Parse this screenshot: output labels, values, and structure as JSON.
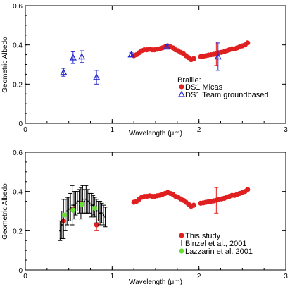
{
  "colors": {
    "micas": "#e02020",
    "groundbased": "#2a2ad0",
    "this_study": "#e02020",
    "binzel": "#000000",
    "lazzarin": "#66e030",
    "axis": "#000000"
  },
  "chart_data": [
    {
      "type": "scatter",
      "title": "",
      "xlabel": "Wavelength (μm)",
      "ylabel": "Geometric Albedo",
      "xlim": [
        0,
        3
      ],
      "ylim": [
        0,
        0.6
      ],
      "xticks": [
        "0",
        "1",
        "2",
        "3"
      ],
      "yticks": [
        "0",
        "0.2",
        "0.4",
        "0.6"
      ],
      "grid": false,
      "legend": {
        "placement": "bottom-right",
        "heading": "Braille:",
        "entries": [
          "DS1 Micas",
          "DS1 Team groundbased"
        ]
      },
      "series": [
        {
          "name": "DS1 Micas",
          "marker": "filled-circle",
          "x": [
            1.25,
            1.28,
            1.31,
            1.34,
            1.37,
            1.4,
            1.43,
            1.46,
            1.49,
            1.52,
            1.55,
            1.58,
            1.61,
            1.64,
            1.67,
            1.7,
            1.73,
            1.76,
            1.79,
            1.82,
            1.85,
            1.88,
            1.91,
            1.94,
            2.02,
            2.05,
            2.08,
            2.11,
            2.14,
            2.17,
            2.2,
            2.23,
            2.26,
            2.29,
            2.32,
            2.35,
            2.38,
            2.41,
            2.44,
            2.47,
            2.5,
            2.53,
            2.56
          ],
          "y": [
            0.345,
            0.35,
            0.36,
            0.37,
            0.375,
            0.375,
            0.378,
            0.375,
            0.375,
            0.378,
            0.38,
            0.385,
            0.39,
            0.395,
            0.39,
            0.385,
            0.375,
            0.37,
            0.362,
            0.355,
            0.345,
            0.335,
            0.325,
            0.33,
            0.34,
            0.342,
            0.345,
            0.348,
            0.35,
            0.352,
            0.355,
            0.36,
            0.362,
            0.365,
            0.37,
            0.375,
            0.38,
            0.38,
            0.385,
            0.39,
            0.395,
            0.4,
            0.41
          ],
          "error": [
            0,
            0,
            0,
            0,
            0,
            0,
            0,
            0,
            0,
            0,
            0,
            0,
            0,
            0,
            0,
            0,
            0,
            0,
            0,
            0,
            0,
            0,
            0,
            0,
            0,
            0,
            0,
            0,
            0,
            0,
            0.06,
            0,
            0,
            0,
            0,
            0,
            0,
            0,
            0,
            0,
            0,
            0,
            0
          ]
        },
        {
          "name": "DS1 Team groundbased",
          "marker": "open-triangle",
          "x": [
            0.44,
            0.55,
            0.65,
            0.82,
            1.22,
            1.63,
            2.22
          ],
          "y": [
            0.26,
            0.335,
            0.34,
            0.235,
            0.35,
            0.39,
            0.34
          ],
          "error": [
            0.02,
            0.03,
            0.03,
            0.035,
            0.01,
            0.01,
            0.07
          ]
        }
      ]
    },
    {
      "type": "scatter",
      "title": "",
      "xlabel": "Wavelength (μm)",
      "ylabel": "Geometric Albedo",
      "xlim": [
        0,
        3
      ],
      "ylim": [
        0,
        0.6
      ],
      "xticks": [
        "0",
        "1",
        "2",
        "3"
      ],
      "yticks": [
        "0",
        "0.2",
        "0.4",
        "0.6"
      ],
      "grid": false,
      "legend": {
        "placement": "bottom-right",
        "entries": [
          "This study",
          "Binzel et al., 2001",
          "Lazzarin et al. 2001"
        ]
      },
      "series": [
        {
          "name": "This study",
          "marker": "filled-circle",
          "x": [
            1.25,
            1.28,
            1.31,
            1.34,
            1.37,
            1.4,
            1.43,
            1.46,
            1.49,
            1.52,
            1.55,
            1.58,
            1.61,
            1.64,
            1.67,
            1.7,
            1.73,
            1.76,
            1.79,
            1.82,
            1.85,
            1.88,
            1.91,
            1.94,
            2.02,
            2.05,
            2.08,
            2.11,
            2.14,
            2.17,
            2.2,
            2.23,
            2.26,
            2.29,
            2.32,
            2.35,
            2.38,
            2.41,
            2.44,
            2.47,
            2.5,
            2.53,
            2.56,
            0.44,
            0.55,
            0.65,
            0.82
          ],
          "y": [
            0.345,
            0.35,
            0.36,
            0.37,
            0.375,
            0.375,
            0.378,
            0.375,
            0.375,
            0.378,
            0.38,
            0.385,
            0.39,
            0.395,
            0.39,
            0.385,
            0.375,
            0.37,
            0.362,
            0.355,
            0.345,
            0.335,
            0.325,
            0.33,
            0.34,
            0.342,
            0.345,
            0.348,
            0.35,
            0.352,
            0.355,
            0.36,
            0.362,
            0.365,
            0.37,
            0.375,
            0.38,
            0.38,
            0.385,
            0.39,
            0.395,
            0.4,
            0.41,
            0.25,
            0.31,
            0.34,
            0.23
          ],
          "error": [
            0,
            0,
            0,
            0,
            0,
            0,
            0,
            0,
            0,
            0,
            0,
            0,
            0,
            0,
            0,
            0,
            0,
            0,
            0,
            0,
            0,
            0,
            0,
            0,
            0,
            0,
            0,
            0,
            0,
            0,
            0.065,
            0,
            0,
            0,
            0,
            0,
            0,
            0,
            0,
            0,
            0,
            0,
            0,
            0,
            0,
            0,
            0.03
          ]
        },
        {
          "name": "Binzel et al., 2001",
          "marker": "dot-errorbar",
          "x": [
            0.4,
            0.42,
            0.44,
            0.46,
            0.48,
            0.5,
            0.52,
            0.54,
            0.56,
            0.58,
            0.6,
            0.62,
            0.64,
            0.66,
            0.68,
            0.7,
            0.72,
            0.74,
            0.76,
            0.78,
            0.8,
            0.82,
            0.84,
            0.86,
            0.88,
            0.9,
            0.92
          ],
          "y": [
            0.2,
            0.23,
            0.26,
            0.28,
            0.3,
            0.31,
            0.32,
            0.33,
            0.33,
            0.34,
            0.35,
            0.35,
            0.34,
            0.36,
            0.35,
            0.36,
            0.35,
            0.34,
            0.33,
            0.33,
            0.32,
            0.3,
            0.3,
            0.29,
            0.29,
            0.28,
            0.27
          ],
          "error": [
            0.05,
            0.07,
            0.1,
            0.08,
            0.07,
            0.06,
            0.07,
            0.1,
            0.07,
            0.06,
            0.05,
            0.06,
            0.08,
            0.07,
            0.06,
            0.07,
            0.06,
            0.05,
            0.06,
            0.05,
            0.05,
            0.06,
            0.05,
            0.06,
            0.05,
            0.05,
            0.05
          ]
        },
        {
          "name": "Lazzarin et al. 2001",
          "marker": "filled-circle",
          "x": [
            0.45,
            0.55,
            0.65,
            0.8
          ],
          "y": [
            0.28,
            0.305,
            0.335,
            0.315
          ],
          "error": [
            0,
            0,
            0,
            0
          ]
        }
      ]
    }
  ]
}
